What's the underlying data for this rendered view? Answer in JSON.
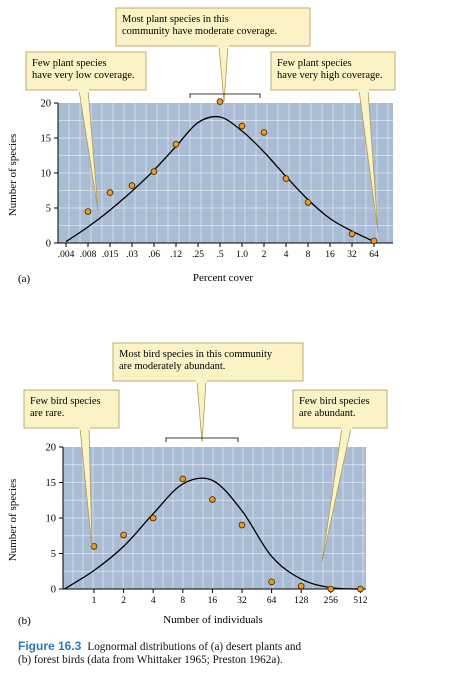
{
  "figure": {
    "caption_number": "Figure 16.3",
    "caption_line1": "Lognormal distributions of (a) desert plants and",
    "caption_line2": "(b) forest birds (data from Whittaker 1965; Preston 1962a).",
    "colors": {
      "plot_bg": "#a9bcd3",
      "grid": "#e1e8f1",
      "callout": "#fbf3c6",
      "callout_border": "#b09a55",
      "point_fill": "#ef9a1f",
      "curve": "#000000"
    }
  },
  "chart_data": [
    {
      "panel": "(a)",
      "type": "scatter",
      "xlabel": "Percent cover",
      "ylabel": "Number of species",
      "x_tick_labels": [
        ".004",
        ".008",
        ".015",
        ".03",
        ".06",
        ".12",
        ".25",
        ".5",
        "1.0",
        "2",
        "4",
        "8",
        "16",
        "32",
        "64"
      ],
      "y_ticks": [
        0,
        5,
        10,
        15,
        20
      ],
      "ylim": [
        0,
        20
      ],
      "grid": true,
      "series": [
        {
          "kind": "points",
          "x": [
            ".008",
            ".015",
            ".03",
            ".06",
            ".12",
            ".5",
            "1.0",
            "2",
            "4",
            "8",
            "32",
            "64"
          ],
          "y": [
            4.5,
            7.2,
            8.2,
            10.2,
            14.1,
            20.2,
            16.7,
            15.8,
            9.2,
            5.8,
            1.3,
            0.3
          ]
        },
        {
          "kind": "fitted_curve",
          "x": [
            ".004",
            ".008",
            ".015",
            ".03",
            ".06",
            ".12",
            ".25",
            ".5",
            "1.0",
            "2",
            "4",
            "8",
            "16",
            "32",
            "64"
          ],
          "y": [
            0.2,
            2.3,
            4.7,
            7.4,
            10.4,
            13.8,
            17.2,
            18.0,
            16.0,
            13.0,
            9.5,
            6.2,
            3.5,
            1.7,
            0.2
          ]
        }
      ],
      "callouts": [
        "Most plant species in this community have moderate coverage.",
        "Few plant species have very low coverage.",
        "Few plant species have very high coverage."
      ]
    },
    {
      "panel": "(b)",
      "type": "scatter",
      "xlabel": "Number of individuals",
      "ylabel": "Number of species",
      "x_tick_labels": [
        "1",
        "2",
        "4",
        "8",
        "16",
        "32",
        "64",
        "128",
        "256",
        "512"
      ],
      "y_ticks": [
        0,
        5,
        10,
        15,
        20
      ],
      "ylim": [
        0,
        20
      ],
      "grid": true,
      "series": [
        {
          "kind": "points",
          "x": [
            "1",
            "2",
            "4",
            "8",
            "16",
            "32",
            "64",
            "128",
            "256",
            "512"
          ],
          "y": [
            6.0,
            7.6,
            10.0,
            15.5,
            12.6,
            9.0,
            1.0,
            0.4,
            0.0,
            0.0
          ]
        },
        {
          "kind": "fitted_curve",
          "x": [
            "0.5",
            "1",
            "2",
            "4",
            "8",
            "16",
            "32",
            "64",
            "128",
            "256",
            "512"
          ],
          "y": [
            0.0,
            2.6,
            6.0,
            10.6,
            14.8,
            15.3,
            11.0,
            4.6,
            1.4,
            0.2,
            0.0
          ]
        }
      ],
      "callouts": [
        "Most bird species in this community are moderately abundant.",
        "Few bird species are rare.",
        "Few bird species are abundant."
      ]
    }
  ]
}
